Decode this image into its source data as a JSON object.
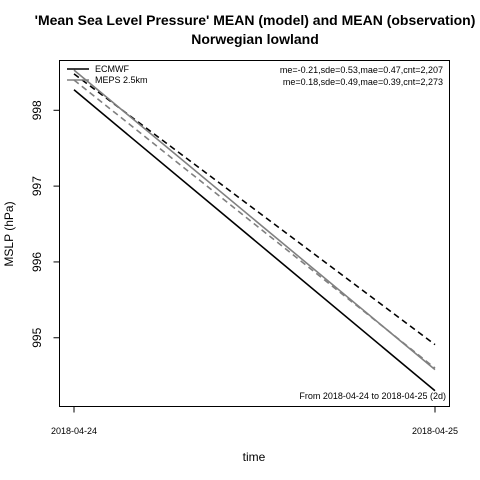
{
  "chart_data": {
    "type": "line",
    "title_line1": "'Mean Sea Level Pressure' MEAN (model) and MEAN (observation)",
    "title_line2": "Norwegian lowland",
    "xlabel": "time",
    "ylabel": "MSLP (hPa)",
    "x_ticks": [
      "2018-04-24",
      "2018-04-25"
    ],
    "y_ticks": [
      995,
      996,
      997,
      998
    ],
    "xlim": [
      0,
      1
    ],
    "ylim": [
      994.1,
      998.65
    ],
    "series": [
      {
        "name": "ECMWF",
        "kind": "model",
        "color": "#000000",
        "dash": false,
        "x": [
          0,
          1
        ],
        "y": [
          998.27,
          994.3
        ]
      },
      {
        "name": "ECMWF",
        "kind": "observation",
        "color": "#000000",
        "dash": true,
        "x": [
          0,
          1
        ],
        "y": [
          998.48,
          994.91
        ]
      },
      {
        "name": "MEPS 2.5km",
        "kind": "model",
        "color": "#808080",
        "dash": false,
        "x": [
          0,
          1
        ],
        "y": [
          998.53,
          994.58
        ]
      },
      {
        "name": "MEPS 2.5km",
        "kind": "observation",
        "color": "#808080",
        "dash": true,
        "x": [
          0,
          1
        ],
        "y": [
          998.4,
          994.6
        ]
      }
    ],
    "legend": {
      "placement": "top-left",
      "entries": [
        {
          "label": "ECMWF",
          "color": "#000000"
        },
        {
          "label": "MEPS 2.5km",
          "color": "#808080"
        }
      ]
    },
    "stats": [
      "me=-0.21,sde=0.53,mae=0.47,cnt=2,207",
      "me=0.18,sde=0.49,mae=0.39,cnt=2,273"
    ],
    "period_note": "From 2018-04-24 to 2018-04-25 (2d)",
    "grid": false
  }
}
